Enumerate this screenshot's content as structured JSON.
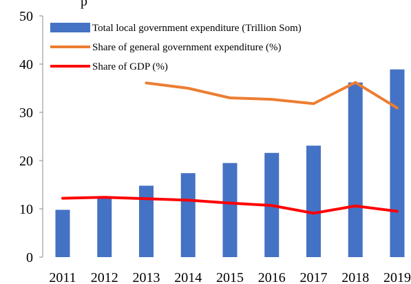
{
  "chart_data": {
    "type": "bar",
    "categories": [
      "2011",
      "2012",
      "2013",
      "2014",
      "2015",
      "2016",
      "2017",
      "2018",
      "2019"
    ],
    "series": [
      {
        "name": "Total local government expenditure (Trillion Som)",
        "kind": "bar",
        "color": "#4472C4",
        "values": [
          9.8,
          12.3,
          14.8,
          17.4,
          19.5,
          21.6,
          23.1,
          36.2,
          38.9
        ]
      },
      {
        "name": "Share of general government expenditure (%)",
        "kind": "line",
        "color": "#ED7D31",
        "values": [
          null,
          null,
          36.1,
          35.0,
          33.0,
          32.7,
          31.8,
          36.2,
          30.9
        ]
      },
      {
        "name": "Share of GDP (%)",
        "kind": "line",
        "color": "#FF0000",
        "values": [
          12.2,
          12.4,
          12.1,
          11.8,
          11.2,
          10.7,
          9.1,
          10.6,
          9.5
        ]
      }
    ],
    "yticks": [
      "0",
      "10",
      "20",
      "30",
      "40",
      "50"
    ],
    "ylim": [
      0,
      50
    ],
    "title_fragment": "p",
    "legend_position": "top-left",
    "grid": false
  }
}
